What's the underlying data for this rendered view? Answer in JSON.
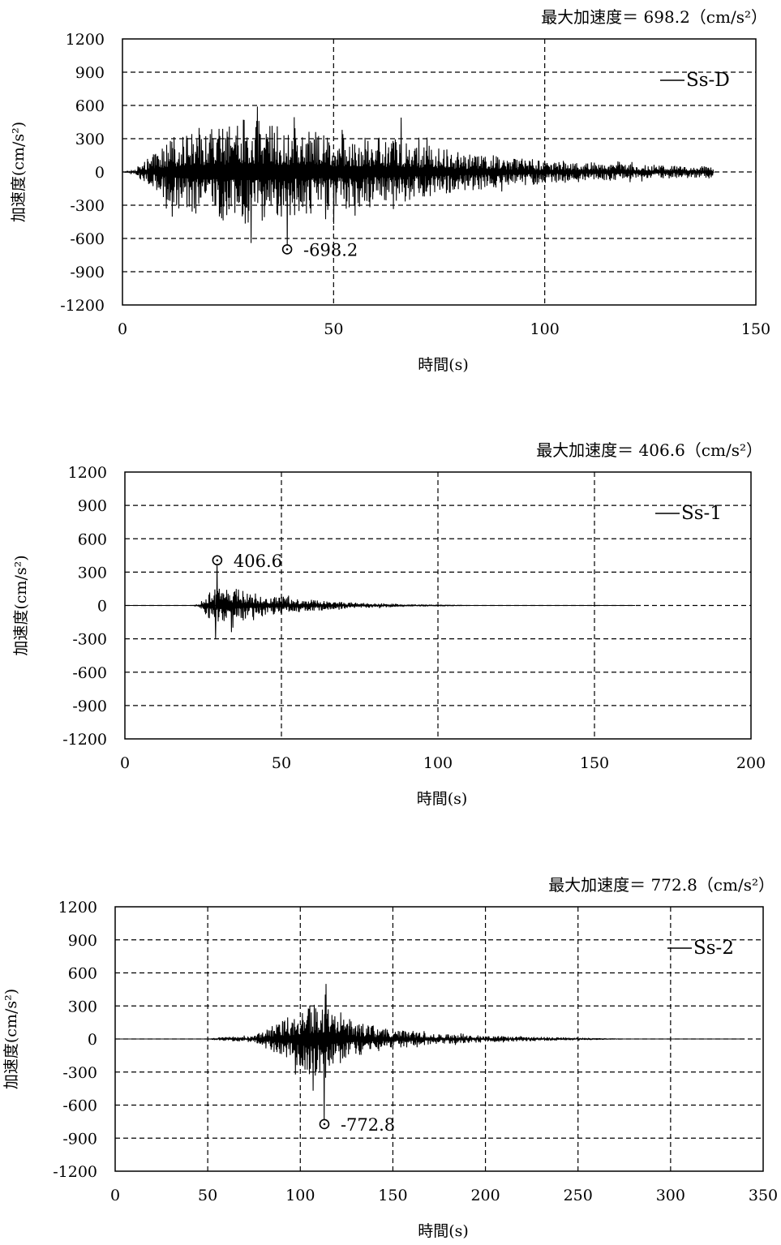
{
  "chart_data": [
    {
      "type": "line",
      "max_label": "最大加速度＝ 698.2（cm/s²）",
      "xlabel": "時間(s)",
      "ylabel": "加速度(cm/s²)",
      "xlim": [
        0,
        150
      ],
      "ylim": [
        -1200,
        1200
      ],
      "xticks": [
        0,
        50,
        100,
        150
      ],
      "yticks": [
        1200,
        900,
        600,
        300,
        0,
        -300,
        -600,
        -900,
        -1200
      ],
      "grid": true,
      "legend": "top-right",
      "series": [
        {
          "name": "Ss-D",
          "color": "#000000",
          "duration": 140,
          "onset": 3,
          "envelope": [
            [
              0,
              0
            ],
            [
              3,
              30
            ],
            [
              8,
              180
            ],
            [
              12,
              320
            ],
            [
              20,
              420
            ],
            [
              30,
              480
            ],
            [
              40,
              400
            ],
            [
              50,
              350
            ],
            [
              65,
              300
            ],
            [
              80,
              180
            ],
            [
              100,
              110
            ],
            [
              120,
              70
            ],
            [
              140,
              50
            ]
          ],
          "peaks": [
            {
              "x": 39,
              "y": -698.2
            },
            {
              "x": 32,
              "y": 590
            },
            {
              "x": 66,
              "y": 490
            },
            {
              "x": 52,
              "y": 380
            }
          ]
        }
      ],
      "annotations": [
        {
          "x": 39,
          "y": -698.2,
          "text": "-698.2"
        }
      ]
    },
    {
      "type": "line",
      "max_label": "最大加速度＝ 406.6（cm/s²）",
      "xlabel": "時間(s)",
      "ylabel": "加速度(cm/s²)",
      "xlim": [
        0,
        200
      ],
      "ylim": [
        -1200,
        1200
      ],
      "xticks": [
        0,
        50,
        100,
        150,
        200
      ],
      "yticks": [
        1200,
        900,
        600,
        300,
        0,
        -300,
        -600,
        -900,
        -1200
      ],
      "grid": true,
      "legend": "top-right",
      "series": [
        {
          "name": "Ss-1",
          "color": "#000000",
          "duration": 163,
          "onset": 22,
          "envelope": [
            [
              0,
              0
            ],
            [
              22,
              0
            ],
            [
              25,
              60
            ],
            [
              28,
              160
            ],
            [
              32,
              180
            ],
            [
              38,
              140
            ],
            [
              45,
              90
            ],
            [
              52,
              80
            ],
            [
              60,
              50
            ],
            [
              75,
              25
            ],
            [
              90,
              12
            ],
            [
              105,
              5
            ],
            [
              110,
              0
            ],
            [
              163,
              0
            ]
          ],
          "peaks": [
            {
              "x": 29.5,
              "y": 406.6
            },
            {
              "x": 29,
              "y": -300
            },
            {
              "x": 34,
              "y": -240
            }
          ]
        }
      ],
      "annotations": [
        {
          "x": 29.5,
          "y": 406.6,
          "text": "406.6"
        }
      ]
    },
    {
      "type": "line",
      "max_label": "最大加速度＝ 772.8（cm/s²）",
      "xlabel": "時間(s)",
      "ylabel": "加速度(cm/s²)",
      "xlim": [
        0,
        350
      ],
      "ylim": [
        -1200,
        1200
      ],
      "xticks": [
        0,
        50,
        100,
        150,
        200,
        250,
        300,
        350
      ],
      "yticks": [
        1200,
        900,
        600,
        300,
        0,
        -300,
        -600,
        -900,
        -1200
      ],
      "grid": true,
      "legend": "top-right",
      "series": [
        {
          "name": "Ss-2",
          "color": "#000000",
          "duration": 340,
          "onset": 50,
          "envelope": [
            [
              0,
              0
            ],
            [
              50,
              0
            ],
            [
              55,
              15
            ],
            [
              75,
              30
            ],
            [
              85,
              120
            ],
            [
              95,
              220
            ],
            [
              105,
              330
            ],
            [
              112,
              380
            ],
            [
              120,
              260
            ],
            [
              130,
              160
            ],
            [
              145,
              100
            ],
            [
              170,
              50
            ],
            [
              200,
              30
            ],
            [
              230,
              18
            ],
            [
              260,
              8
            ],
            [
              275,
              0
            ],
            [
              340,
              0
            ]
          ],
          "peaks": [
            {
              "x": 113,
              "y": -772.8
            },
            {
              "x": 114,
              "y": 500
            },
            {
              "x": 107,
              "y": -470
            }
          ]
        }
      ],
      "annotations": [
        {
          "x": 113,
          "y": -772.8,
          "text": "-772.8"
        }
      ]
    }
  ]
}
